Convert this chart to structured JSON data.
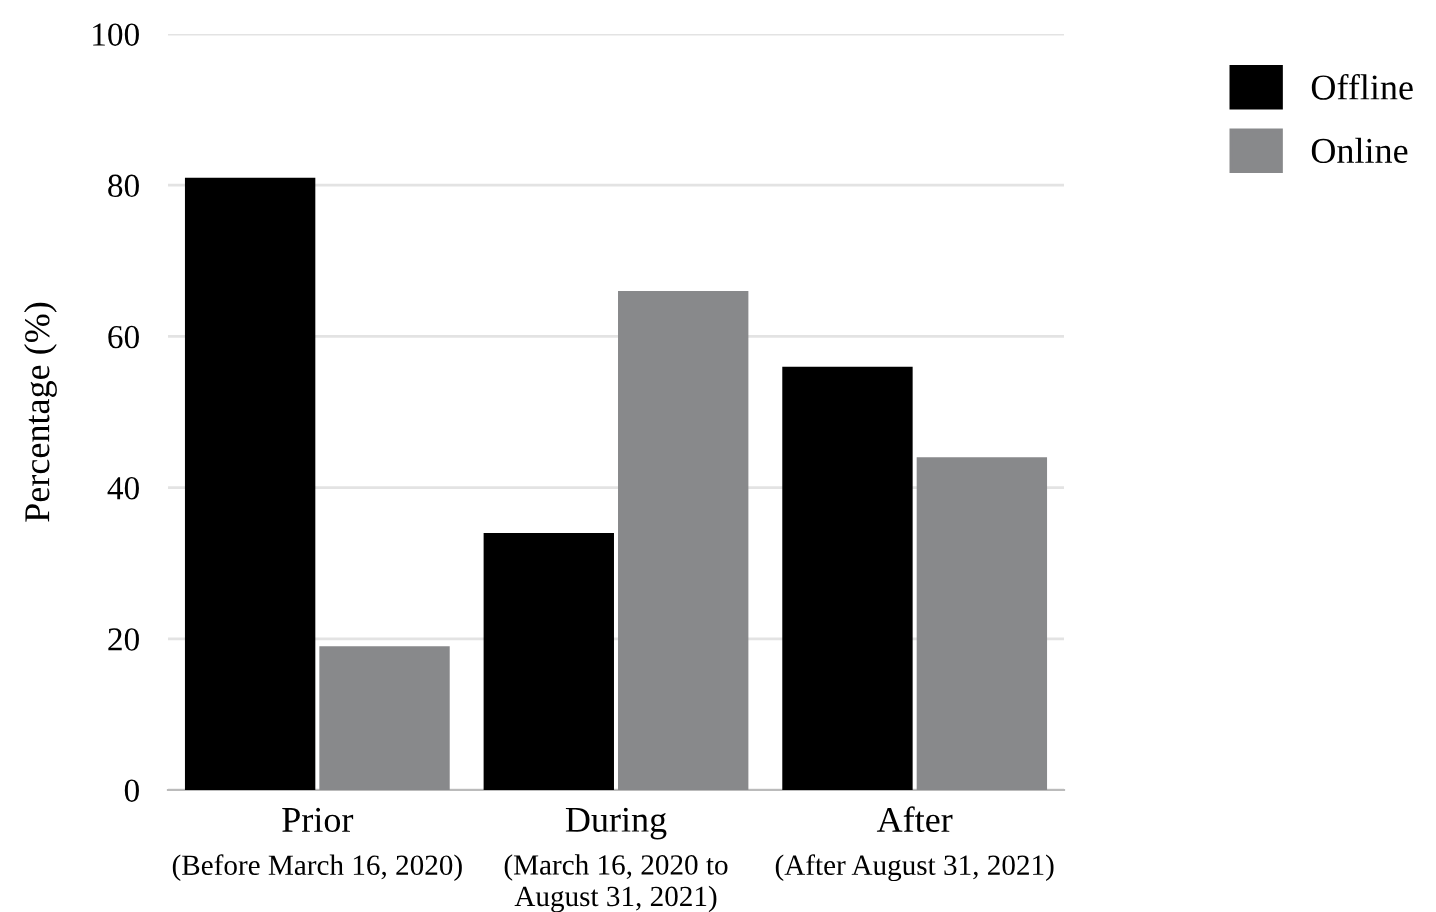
{
  "chart_data": {
    "type": "bar",
    "ylabel": "Percentage (%)",
    "categories": [
      "Prior\n(Before March 16, 2020)",
      "During\n(March 16, 2020 to\nAugust 31, 2021)",
      "After\n(After August 31, 2021)"
    ],
    "series": [
      {
        "name": "Offline",
        "color": "#000000",
        "values": [
          81,
          34,
          56
        ]
      },
      {
        "name": "Online",
        "color": "#88898b",
        "values": [
          19,
          66,
          44
        ]
      }
    ],
    "ylim": [
      0,
      100
    ],
    "yticks": [
      0,
      20,
      40,
      60,
      80,
      100
    ],
    "grid": "y",
    "legend": "top right"
  }
}
